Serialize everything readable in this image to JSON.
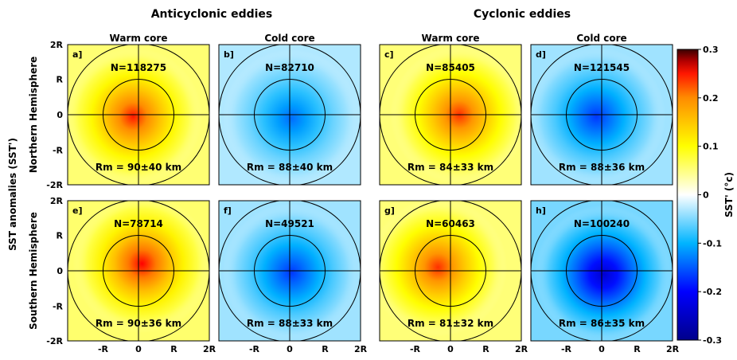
{
  "chart_data": {
    "type": "heatmap",
    "group_titles": [
      "Anticyclonic eddies",
      "Cyclonic eddies"
    ],
    "column_titles": [
      "Warm core",
      "Cold core",
      "Warm core",
      "Cold core"
    ],
    "row_labels": [
      "Northern Hemisphere",
      "Southern Hemisphere"
    ],
    "ylabel": "SST anomalies (SST')",
    "x_ticks": [
      "-R",
      "0",
      "R",
      "2R"
    ],
    "y_ticks": [
      "2R",
      "R",
      "0",
      "-R",
      "-2R"
    ],
    "colorbar": {
      "label": "SST' (°c)",
      "range": [
        -0.3,
        0.3
      ],
      "ticks": [
        "0.3",
        "0.2",
        "0.1",
        "0",
        "-0.1",
        "-0.2",
        "-0.3"
      ],
      "colormap": [
        "#00008b",
        "#0000ff",
        "#00b4ff",
        "#ffffff",
        "#ffff00",
        "#ff8c00",
        "#ff0000",
        "#3a0000"
      ]
    },
    "panels": [
      {
        "id": "a]",
        "N": "N=118275",
        "Rm": "Rm = 90±40 km",
        "peak": 0.25,
        "cx": -0.15,
        "cy": -0.05
      },
      {
        "id": "b]",
        "N": "N=82710",
        "Rm": "Rm = 88±40 km",
        "peak": -0.14,
        "cx": 0.05,
        "cy": -0.1
      },
      {
        "id": "c]",
        "N": "N=85405",
        "Rm": "Rm = 84±33 km",
        "peak": 0.24,
        "cx": 0.25,
        "cy": 0.0
      },
      {
        "id": "d]",
        "N": "N=121545",
        "Rm": "Rm = 88±36 km",
        "peak": -0.17,
        "cx": -0.15,
        "cy": -0.05
      },
      {
        "id": "e]",
        "N": "N=78714",
        "Rm": "Rm = 90±36 km",
        "peak": 0.26,
        "cx": 0.1,
        "cy": 0.2
      },
      {
        "id": "f]",
        "N": "N=49521",
        "Rm": "Rm = 88±33 km",
        "peak": -0.17,
        "cx": 0.05,
        "cy": -0.05
      },
      {
        "id": "g]",
        "N": "N=60463",
        "Rm": "Rm = 81±32 km",
        "peak": 0.24,
        "cx": -0.35,
        "cy": 0.1
      },
      {
        "id": "h]",
        "N": "N=100240",
        "Rm": "Rm = 86±35 km",
        "peak": -0.24,
        "cx": 0.05,
        "cy": -0.1
      }
    ]
  }
}
